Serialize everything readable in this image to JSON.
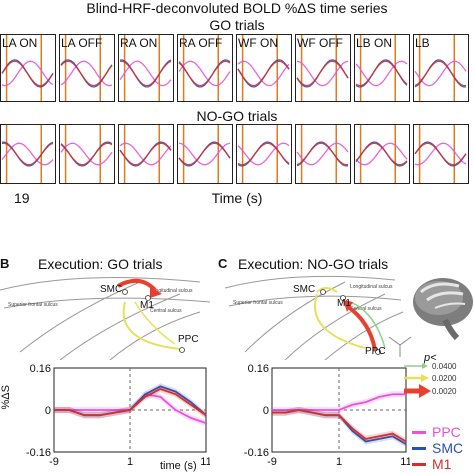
{
  "panel_a": {
    "title": "Blind-HRF-deconvoluted BOLD %ΔS time series",
    "go_label": "GO trials",
    "nogo_label": "NO-GO trials",
    "conditions": [
      "LA ON",
      "LA OFF",
      "RA ON",
      "RA OFF",
      "WF ON",
      "WF OFF",
      "LB ON",
      "LB"
    ],
    "x_tick": "19",
    "xlabel": "Time (s)"
  },
  "panel_b": {
    "letter": "B",
    "title": "Execution: GO trials",
    "nodes": [
      "SMC",
      "M1",
      "PPC"
    ],
    "sulci": [
      "Superior frontal sulcus",
      "Longitudinal sulcus",
      "Central sulcus"
    ],
    "ylabel": "%ΔS",
    "yticks": [
      "0.16",
      "0",
      "-0.16"
    ],
    "xticks": [
      "-9",
      "1",
      "11"
    ],
    "xlabel": "time (s)"
  },
  "panel_c": {
    "letter": "C",
    "title": "Execution: NO-GO trials",
    "nodes": [
      "SMC",
      "M1",
      "PPC"
    ],
    "sulci": [
      "Superior frontal sulcus",
      "Longitudinal sulcus",
      "Central sulcus"
    ],
    "yticks": [
      "0.16",
      "0",
      "-0.16"
    ],
    "xticks": [
      "-9",
      "1",
      "11"
    ]
  },
  "pvalue_legend": {
    "title": "p<",
    "items": [
      {
        "value": "0.0400",
        "color": "#8fd18b"
      },
      {
        "value": "0.0200",
        "color": "#e8e05a"
      },
      {
        "value": "0.0020",
        "color": "#e8402e"
      }
    ]
  },
  "region_legend": [
    {
      "name": "PPC",
      "color": "#e754d6"
    },
    {
      "name": "SMC",
      "color": "#2c4fb3"
    },
    {
      "name": "M1",
      "color": "#d32f2f"
    }
  ],
  "chart_data": [
    {
      "type": "line",
      "title": "GO trials",
      "series": [
        {
          "name": "PPC",
          "color": "#e754d6"
        },
        {
          "name": "SMC",
          "color": "#2c4fb3"
        },
        {
          "name": "M1",
          "color": "#d32f2f"
        }
      ],
      "panels": [
        "LA ON",
        "LA OFF",
        "RA ON",
        "RA OFF",
        "WF ON",
        "WF OFF",
        "LB ON",
        "LB"
      ]
    },
    {
      "type": "line",
      "title": "NO-GO trials",
      "series": [
        {
          "name": "PPC",
          "color": "#e754d6"
        },
        {
          "name": "SMC",
          "color": "#2c4fb3"
        },
        {
          "name": "M1",
          "color": "#d32f2f"
        }
      ],
      "panels": [
        "LA ON",
        "LA OFF",
        "RA ON",
        "RA OFF",
        "WF ON",
        "WF OFF",
        "LB ON",
        "LB"
      ]
    },
    {
      "type": "line",
      "title": "Execution: GO trials",
      "x": [
        -9,
        -7,
        -5,
        -3,
        -1,
        1,
        3,
        5,
        7,
        9,
        11
      ],
      "ylim": [
        -0.16,
        0.16
      ],
      "xlim": [
        -9,
        11
      ],
      "series": [
        {
          "name": "PPC",
          "color": "#e754d6",
          "values": [
            0.0,
            0.0,
            0.0,
            0.0,
            0.0,
            0.0,
            0.06,
            0.05,
            0.0,
            -0.03,
            -0.05
          ]
        },
        {
          "name": "SMC",
          "color": "#2c4fb3",
          "values": [
            0.0,
            0.0,
            -0.02,
            -0.02,
            -0.01,
            0.0,
            0.06,
            0.09,
            0.07,
            0.03,
            -0.02
          ]
        },
        {
          "name": "M1",
          "color": "#d32f2f",
          "values": [
            0.0,
            0.0,
            -0.02,
            -0.02,
            -0.01,
            0.0,
            0.05,
            0.08,
            0.06,
            0.02,
            -0.02
          ]
        }
      ]
    },
    {
      "type": "line",
      "title": "Execution: NO-GO trials",
      "x": [
        -9,
        -7,
        -5,
        -3,
        -1,
        1,
        3,
        5,
        7,
        9,
        11
      ],
      "ylim": [
        -0.16,
        0.16
      ],
      "xlim": [
        -9,
        11
      ],
      "series": [
        {
          "name": "PPC",
          "color": "#e754d6",
          "values": [
            0.0,
            0.0,
            0.0,
            0.0,
            0.0,
            0.0,
            0.02,
            0.03,
            0.05,
            0.06,
            0.06
          ]
        },
        {
          "name": "SMC",
          "color": "#2c4fb3",
          "values": [
            -0.01,
            -0.01,
            0.0,
            -0.01,
            -0.02,
            -0.02,
            -0.08,
            -0.12,
            -0.11,
            -0.1,
            -0.13
          ]
        },
        {
          "name": "M1",
          "color": "#d32f2f",
          "values": [
            -0.01,
            -0.01,
            0.0,
            -0.01,
            -0.02,
            -0.02,
            -0.07,
            -0.11,
            -0.1,
            -0.09,
            -0.12
          ]
        }
      ]
    }
  ]
}
